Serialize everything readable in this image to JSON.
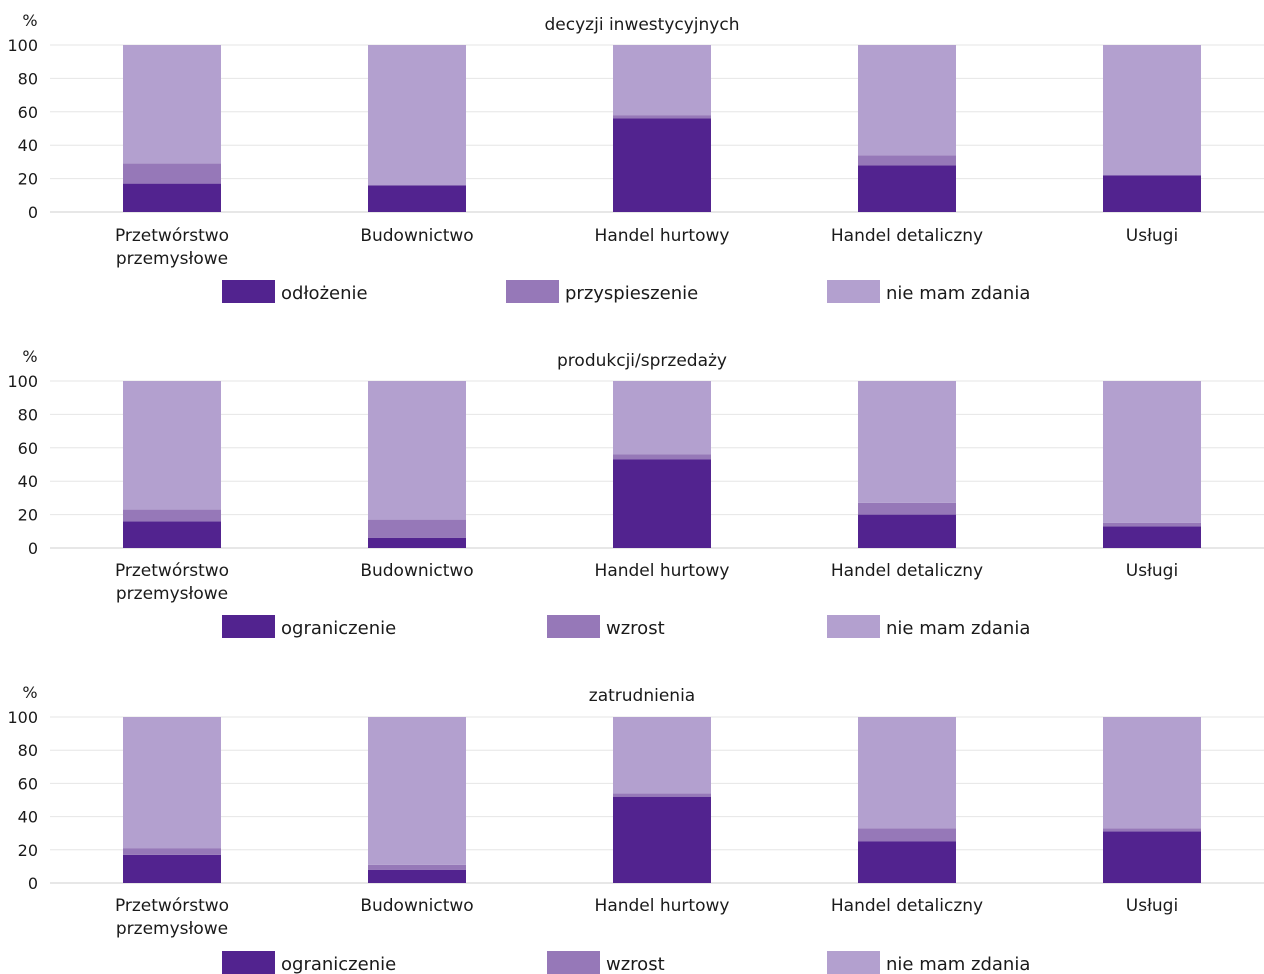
{
  "chart_data": [
    {
      "type": "bar",
      "stacked": true,
      "title": "decyzji inwestycyjnych",
      "ylabel": "%",
      "ylim": [
        0,
        100
      ],
      "yticks": [
        0,
        20,
        40,
        60,
        80,
        100
      ],
      "grid": true,
      "legend_position": "bottom",
      "categories": [
        "Przetwórstwo\nprzemysłowe",
        "Budownictwo",
        "Handel hurtowy",
        "Handel detaliczny",
        "Usługi"
      ],
      "series": [
        {
          "name": "odłożenie",
          "color": "#52238f",
          "values": [
            17,
            16,
            56,
            28,
            22
          ]
        },
        {
          "name": "przyspieszenie",
          "color": "#9678b8",
          "values": [
            12,
            0,
            2,
            6,
            0
          ]
        },
        {
          "name": "nie mam zdania",
          "color": "#b3a0cf",
          "values": [
            71,
            84,
            42,
            66,
            78
          ]
        }
      ]
    },
    {
      "type": "bar",
      "stacked": true,
      "title": "produkcji/sprzedaży",
      "ylabel": "%",
      "ylim": [
        0,
        100
      ],
      "yticks": [
        0,
        20,
        40,
        60,
        80,
        100
      ],
      "grid": true,
      "legend_position": "bottom",
      "categories": [
        "Przetwórstwo\nprzemysłowe",
        "Budownictwo",
        "Handel hurtowy",
        "Handel detaliczny",
        "Usługi"
      ],
      "series": [
        {
          "name": "ograniczenie",
          "color": "#52238f",
          "values": [
            16,
            6,
            53,
            20,
            13
          ]
        },
        {
          "name": "wzrost",
          "color": "#9678b8",
          "values": [
            7,
            11,
            3,
            7,
            2
          ]
        },
        {
          "name": "nie mam zdania",
          "color": "#b3a0cf",
          "values": [
            77,
            83,
            44,
            73,
            85
          ]
        }
      ]
    },
    {
      "type": "bar",
      "stacked": true,
      "title": "zatrudnienia",
      "ylabel": "%",
      "ylim": [
        0,
        100
      ],
      "yticks": [
        0,
        20,
        40,
        60,
        80,
        100
      ],
      "grid": true,
      "legend_position": "bottom",
      "categories": [
        "Przetwórstwo\nprzemysłowe",
        "Budownictwo",
        "Handel hurtowy",
        "Handel detaliczny",
        "Usługi"
      ],
      "series": [
        {
          "name": "ograniczenie",
          "color": "#52238f",
          "values": [
            17,
            8,
            52,
            25,
            31
          ]
        },
        {
          "name": "wzrost",
          "color": "#9678b8",
          "values": [
            4,
            3,
            2,
            8,
            2
          ]
        },
        {
          "name": "nie mam zdania",
          "color": "#b3a0cf",
          "values": [
            79,
            89,
            46,
            67,
            67
          ]
        }
      ]
    }
  ]
}
